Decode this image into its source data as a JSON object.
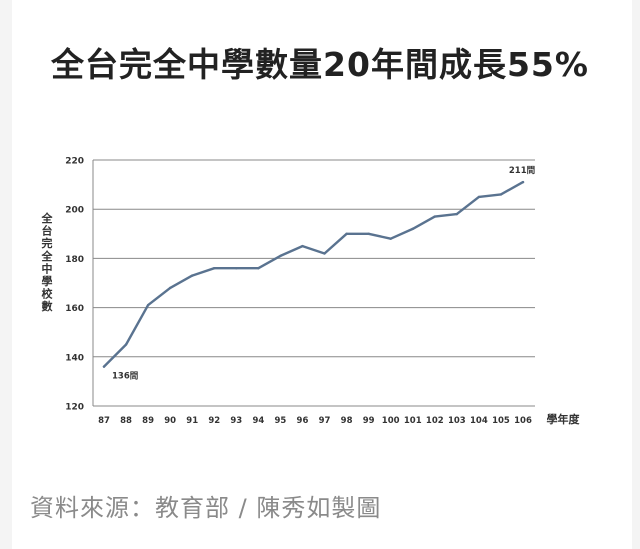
{
  "headline": "全台完全中學數量20年間成長55%",
  "source": "資料來源：教育部 / 陳秀如製圖",
  "colors": {
    "line": "#5a7390",
    "grid": "#888888",
    "text": "#333333"
  },
  "chart_data": {
    "type": "line",
    "title": "",
    "xlabel": "學年度",
    "ylabel": "全台完全中學校數",
    "categories": [
      "87",
      "88",
      "89",
      "90",
      "91",
      "92",
      "93",
      "94",
      "95",
      "96",
      "97",
      "98",
      "99",
      "100",
      "101",
      "102",
      "103",
      "104",
      "105",
      "106"
    ],
    "series": [
      {
        "values": [
          136,
          145,
          161,
          168,
          173,
          176,
          176,
          176,
          181,
          185,
          182,
          190,
          190,
          188,
          192,
          197,
          198,
          205,
          206,
          211
        ]
      }
    ],
    "ylim": [
      120,
      220
    ],
    "yticks": [
      120,
      140,
      160,
      180,
      200,
      220
    ],
    "grid": true,
    "annotations": [
      {
        "label": "136間",
        "category": "87",
        "value": 136
      },
      {
        "label": "211間",
        "category": "106",
        "value": 211
      }
    ]
  }
}
